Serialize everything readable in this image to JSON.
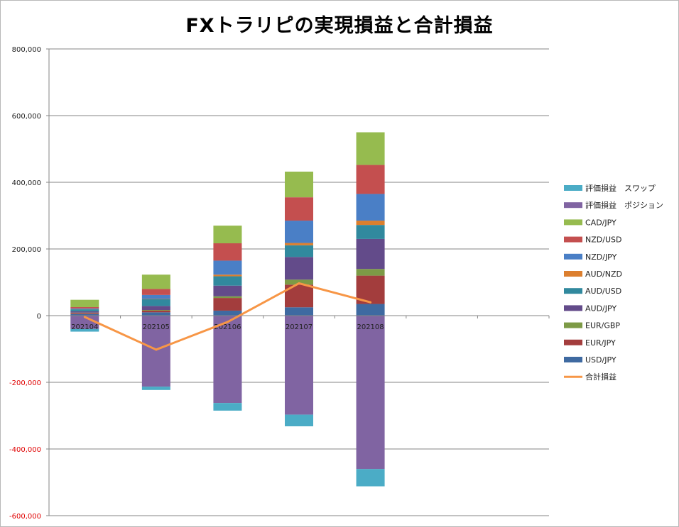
{
  "chart_data": {
    "type": "bar",
    "stacked": true,
    "title": "FXトラリピの実現損益と合計損益",
    "categories": [
      "202104",
      "202105",
      "202106",
      "202107",
      "202108"
    ],
    "ylim": [
      -600000,
      800000
    ],
    "yticks": [
      800000,
      600000,
      400000,
      200000,
      0,
      -200000,
      -400000,
      -600000
    ],
    "ytick_labels": [
      "800,000",
      "600,000",
      "400,000",
      "200,000",
      "0",
      "-200,000",
      "-400,000",
      "-600,000"
    ],
    "negative_tick_color": "#e00000",
    "grid": true,
    "legend_position": "right",
    "series": [
      {
        "name": "USD/JPY",
        "color": "#3f6aa1",
        "values": [
          5000,
          10000,
          15000,
          25000,
          35000
        ]
      },
      {
        "name": "EUR/JPY",
        "color": "#a33d3d",
        "values": [
          3000,
          5000,
          38000,
          68000,
          85000
        ]
      },
      {
        "name": "EUR/GBP",
        "color": "#7d9a46",
        "values": [
          1000,
          2000,
          5000,
          15000,
          20000
        ]
      },
      {
        "name": "AUD/JPY",
        "color": "#634b8a",
        "values": [
          4000,
          12000,
          32000,
          68000,
          90000
        ]
      },
      {
        "name": "AUD/USD",
        "color": "#31899e",
        "values": [
          6000,
          20000,
          28000,
          35000,
          42000
        ]
      },
      {
        "name": "AUD/NZD",
        "color": "#dc7f2e",
        "values": [
          500,
          1000,
          5000,
          7000,
          13000
        ]
      },
      {
        "name": "NZD/JPY",
        "color": "#4a7fc6",
        "values": [
          2000,
          12000,
          42000,
          67000,
          80000
        ]
      },
      {
        "name": "NZD/USD",
        "color": "#c44f4f",
        "values": [
          4000,
          18000,
          52000,
          70000,
          87000
        ]
      },
      {
        "name": "CAD/JPY",
        "color": "#96bb4f",
        "values": [
          22000,
          43000,
          53000,
          77000,
          98000
        ]
      },
      {
        "name": "評価損益　ポジション",
        "color": "#8064a2",
        "values": [
          -40000,
          -213000,
          -262000,
          -297000,
          -460000
        ]
      },
      {
        "name": "評価損益　スワップ",
        "color": "#4bacc6",
        "values": [
          -8000,
          -10000,
          -23000,
          -35000,
          -52000
        ]
      }
    ],
    "line": {
      "name": "合計損益",
      "color": "#f79646",
      "values": [
        -4000,
        -102000,
        -19000,
        97000,
        40000
      ]
    },
    "legend_order": [
      "評価損益　スワップ",
      "評価損益　ポジション",
      "CAD/JPY",
      "NZD/USD",
      "NZD/JPY",
      "AUD/NZD",
      "AUD/USD",
      "AUD/JPY",
      "EUR/GBP",
      "EUR/JPY",
      "USD/JPY",
      "合計損益"
    ]
  }
}
